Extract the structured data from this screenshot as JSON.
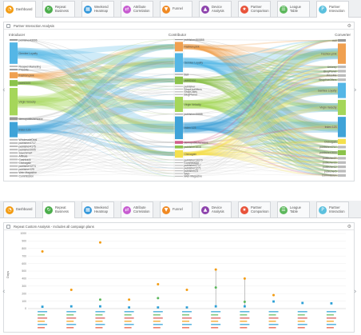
{
  "top_tabs": [
    {
      "label": "Dashboard",
      "color": "#f39c12",
      "icon": "dashboard-icon",
      "glyph": "◔",
      "active": true
    },
    {
      "label": "Repeat\nBusiness",
      "color": "#4cae4c",
      "icon": "repeat-icon",
      "glyph": "↻",
      "active": false
    },
    {
      "label": "Weekend\nHeatmap",
      "color": "#3498db",
      "icon": "heatmap-icon",
      "glyph": "▦",
      "active": false
    },
    {
      "label": "Attribute\nCorrelation",
      "color": "#c75cd1",
      "icon": "correlation-icon",
      "glyph": "⇄",
      "active": false
    },
    {
      "label": "Funnel",
      "color": "#f08a24",
      "icon": "funnel-icon",
      "glyph": "▼",
      "active": false
    },
    {
      "label": "Device\nAnalysis",
      "color": "#8e44ad",
      "icon": "device-icon",
      "glyph": "▲",
      "active": false
    },
    {
      "label": "Partner\nComparison",
      "color": "#e8533a",
      "icon": "star-icon",
      "glyph": "★",
      "active": false
    },
    {
      "label": "League\nTable",
      "color": "#5cb85c",
      "icon": "league-table-icon",
      "glyph": "☰",
      "active": false
    },
    {
      "label": "Partner\nInteraction",
      "color": "#5bc0de",
      "icon": "partner-interaction-icon",
      "glyph": "P",
      "active": true
    }
  ],
  "bottom_tabs": [
    {
      "label": "Dashboard",
      "color": "#f39c12",
      "icon": "dashboard-icon",
      "glyph": "◔",
      "active": false
    },
    {
      "label": "Repeat\nBusiness",
      "color": "#4cae4c",
      "icon": "repeat-icon",
      "glyph": "↻",
      "active": true
    },
    {
      "label": "Weekend\nHeatmap",
      "color": "#3498db",
      "icon": "heatmap-icon",
      "glyph": "▦",
      "active": false
    },
    {
      "label": "Attribute\nCorrelation",
      "color": "#c75cd1",
      "icon": "correlation-icon",
      "glyph": "⇄",
      "active": false
    },
    {
      "label": "Funnel",
      "color": "#f08a24",
      "icon": "funnel-icon",
      "glyph": "▼",
      "active": false
    },
    {
      "label": "Device\nAnalysis",
      "color": "#8e44ad",
      "icon": "device-icon",
      "glyph": "▲",
      "active": false
    },
    {
      "label": "Partner\nComparison",
      "color": "#e8533a",
      "icon": "star-icon",
      "glyph": "★",
      "active": false
    },
    {
      "label": "League\nTable",
      "color": "#5cb85c",
      "icon": "league-table-icon",
      "glyph": "☰",
      "active": false
    },
    {
      "label": "Partner\nInteraction",
      "color": "#5bc0de",
      "icon": "partner-interaction-icon",
      "glyph": "P",
      "active": false
    }
  ],
  "sankey_panel": {
    "title": "Partner Interaction Analysis",
    "col_introducer": "Introducer",
    "col_contributor": "Contributor",
    "col_converter": "Converter",
    "introducer_nodes": [
      {
        "label": "publisher43996",
        "color": "#999999",
        "h": 1
      },
      {
        "label": "Gemlee Loyalty",
        "color": "#54b6e6",
        "h": 14
      },
      {
        "label": "Reaped Marketing",
        "color": "#bbbbbb",
        "h": 1
      },
      {
        "label": "PriceMe",
        "color": "#999999",
        "h": 1
      },
      {
        "label": "Fashion.pink",
        "color": "#f0a050",
        "h": 4
      },
      {
        "label": "publi2100",
        "color": "#8bc34a",
        "h": 4
      },
      {
        "label": "Virgin Velocity",
        "color": "#a5d65a",
        "h": 18
      },
      {
        "label": "demopublisherwave",
        "color": "#999999",
        "h": 2
      },
      {
        "label": "Index 123",
        "color": "#3fa3d8",
        "h": 10
      },
      {
        "label": "WholesaleDeal",
        "color": "#bbbbbb",
        "h": 1
      },
      {
        "label": "publisher4717",
        "color": "#bbbbbb",
        "h": 1
      },
      {
        "label": "publisher4175",
        "color": "#bbbbbb",
        "h": 1
      },
      {
        "label": "publisher2005",
        "color": "#bbbbbb",
        "h": 1
      },
      {
        "label": "SaveSmart",
        "color": "#bbbbbb",
        "h": 1
      },
      {
        "label": "Affiliate",
        "color": "#bbbbbb",
        "h": 1
      },
      {
        "label": "Cashback",
        "color": "#bbbbbb",
        "h": 1
      },
      {
        "label": "Clickagain",
        "color": "#bbbbbb",
        "h": 1
      },
      {
        "label": "publisher1274",
        "color": "#bbbbbb",
        "h": 1
      },
      {
        "label": "publisher125",
        "color": "#bbbbbb",
        "h": 1
      },
      {
        "label": "Web Magazine",
        "color": "#bbbbbb",
        "h": 1
      },
      {
        "label": "Commission",
        "color": "#bbbbbb",
        "h": 1
      }
    ],
    "contributor_nodes": [
      {
        "label": "publisher450888",
        "color": "#999999",
        "h": 1
      },
      {
        "label": "Fashion.pink",
        "color": "#f0a050",
        "h": 10
      },
      {
        "label": "Gemlee Loyalty",
        "color": "#54b6e6",
        "h": 20
      },
      {
        "label": "Bell",
        "color": "#999999",
        "h": 1
      },
      {
        "label": "publi2100",
        "color": "#8bc34a",
        "h": 8
      },
      {
        "label": "publisher",
        "color": "#bbbbbb",
        "h": 1
      },
      {
        "label": "ShopHotOffers",
        "color": "#bbbbbb",
        "h": 1
      },
      {
        "label": "ShopCities",
        "color": "#bbbbbb",
        "h": 1
      },
      {
        "label": "BlogPlanet",
        "color": "#bbbbbb",
        "h": 1
      },
      {
        "label": "Virgin Velocity",
        "color": "#a5d65a",
        "h": 16
      },
      {
        "label": "publisher45888",
        "color": "#999999",
        "h": 1
      },
      {
        "label": "Index 123",
        "color": "#3fa3d8",
        "h": 24
      },
      {
        "label": "demopublisherwave",
        "color": "#d05c8a",
        "h": 3
      },
      {
        "label": "publisher1616",
        "color": "#8bc34a",
        "h": 3
      },
      {
        "label": "Clickagain",
        "color": "#f4e04d",
        "h": 8
      },
      {
        "label": "publisher13270",
        "color": "#bbbbbb",
        "h": 1
      },
      {
        "label": "Commission",
        "color": "#bbbbbb",
        "h": 1
      },
      {
        "label": "publisher4717",
        "color": "#bbbbbb",
        "h": 1
      },
      {
        "label": "publisher1271",
        "color": "#bbbbbb",
        "h": 1
      },
      {
        "label": "publisher23",
        "color": "#bbbbbb",
        "h": 1
      },
      {
        "label": "Web",
        "color": "#bbbbbb",
        "h": 1
      },
      {
        "label": "Web Magazine",
        "color": "#bbbbbb",
        "h": 1
      }
    ],
    "converter_nodes": [
      {
        "label": "null",
        "color": "#999999",
        "h": 1
      },
      {
        "label": "Fashion.pink",
        "color": "#f0a050",
        "h": 8
      },
      {
        "label": "Unkeep",
        "color": "#bbbbbb",
        "h": 1
      },
      {
        "label": "BlogPlanet",
        "color": "#bbbbbb",
        "h": 1
      },
      {
        "label": "PriceMe",
        "color": "#bbbbbb",
        "h": 1
      },
      {
        "label": "ShopHotOffers",
        "color": "#bbbbbb",
        "h": 1
      },
      {
        "label": "Gemlee Loyalty",
        "color": "#54b6e6",
        "h": 6
      },
      {
        "label": "Virgin Velocity",
        "color": "#a5d65a",
        "h": 6
      },
      {
        "label": "Index 123",
        "color": "#3fa3d8",
        "h": 8
      },
      {
        "label": "Clickagain",
        "color": "#f4e04d",
        "h": 2
      },
      {
        "label": "publisher4717",
        "color": "#bbbbbb",
        "h": 1
      },
      {
        "label": "publisher1616",
        "color": "#8bc34a",
        "h": 2
      },
      {
        "label": "publisher27",
        "color": "#bbbbbb",
        "h": 1
      },
      {
        "label": "publisher23",
        "color": "#bbbbbb",
        "h": 1
      },
      {
        "label": "publisher12",
        "color": "#bbbbbb",
        "h": 1
      },
      {
        "label": "publisher5",
        "color": "#bbbbbb",
        "h": 1
      },
      {
        "label": "Commission",
        "color": "#bbbbbb",
        "h": 1
      }
    ]
  },
  "repeat_panel": {
    "title": "Repeat Custom Analysis - Includes all campaign plans",
    "ylabel": "Days"
  },
  "chart_data": {
    "type": "scatter",
    "title": "",
    "xlabel": "",
    "ylabel": "Days",
    "ylim": [
      0,
      1000
    ],
    "yticks": [
      0,
      100,
      200,
      300,
      400,
      500,
      600,
      700,
      800,
      900,
      1000
    ],
    "grid": true,
    "categories": [
      "cat01",
      "cat02",
      "cat03",
      "cat04",
      "cat05",
      "cat06",
      "cat07",
      "cat08",
      "cat09",
      "cat10",
      "cat11"
    ],
    "series": [
      {
        "color": "#f39c12",
        "values": [
          760,
          250,
          880,
          120,
          325,
          250,
          520,
          400,
          180,
          null,
          null
        ]
      },
      {
        "color": "#5cb85c",
        "values": [
          null,
          null,
          120,
          null,
          140,
          null,
          280,
          90,
          null,
          null,
          null
        ]
      },
      {
        "color": "#2a9fd6",
        "values": [
          25,
          30,
          30,
          15,
          15,
          15,
          30,
          30,
          95,
          75,
          70
        ]
      }
    ],
    "stem_categories": [
      6,
      7
    ]
  }
}
